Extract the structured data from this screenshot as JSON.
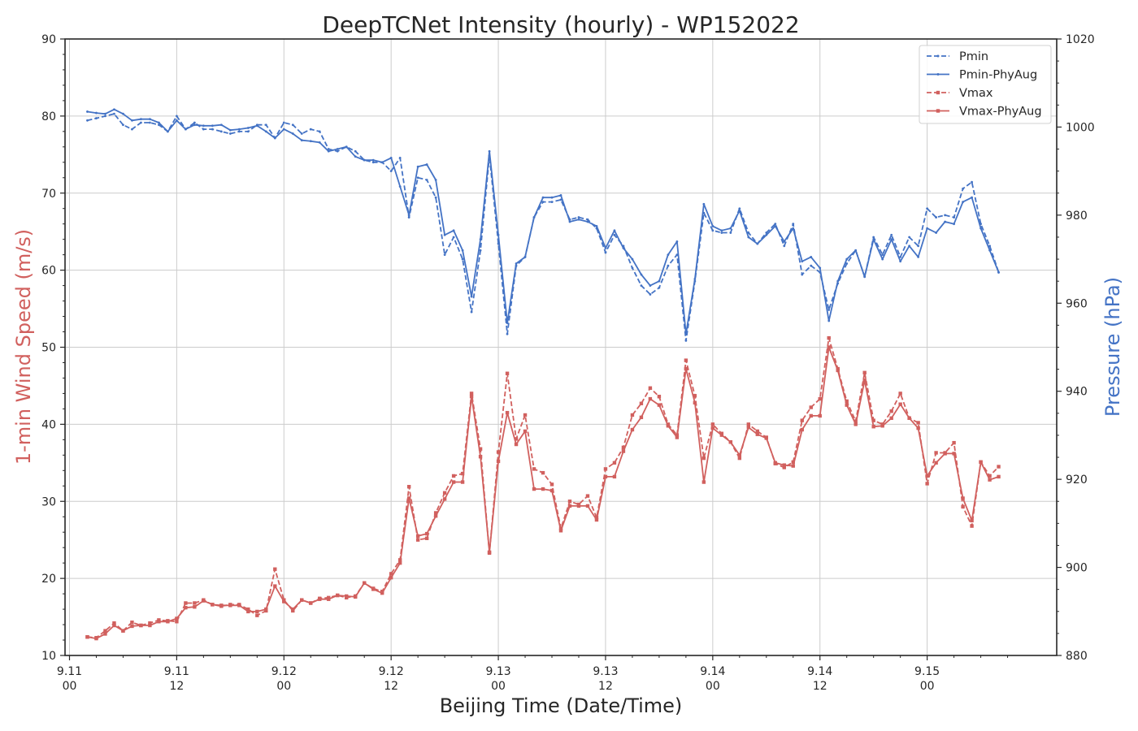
{
  "chart_data": {
    "type": "line",
    "title": "DeepTCNet Intensity (hourly) - WP152022",
    "xlabel": "Beijing Time (Date/Time)",
    "ylabel": "1-min Wind Speed (m/s)",
    "y2label": "Pressure (hPa)",
    "colors": {
      "wind": "#d1605e",
      "pressure": "#4473c5"
    },
    "grid": true,
    "legend_position": "top-right",
    "xlim": [
      -0.5,
      110.5
    ],
    "ylim": [
      10,
      90
    ],
    "y2lim": [
      880,
      1020
    ],
    "xticks": [
      {
        "x": 0,
        "date": "9.11",
        "hour": "00"
      },
      {
        "x": 12,
        "date": "9.11",
        "hour": "12"
      },
      {
        "x": 24,
        "date": "9.12",
        "hour": "00"
      },
      {
        "x": 36,
        "date": "9.12",
        "hour": "12"
      },
      {
        "x": 48,
        "date": "9.13",
        "hour": "00"
      },
      {
        "x": 60,
        "date": "9.13",
        "hour": "12"
      },
      {
        "x": 72,
        "date": "9.14",
        "hour": "00"
      },
      {
        "x": 84,
        "date": "9.14",
        "hour": "12"
      },
      {
        "x": 96,
        "date": "9.15",
        "hour": "00"
      }
    ],
    "yticks": [
      10,
      20,
      30,
      40,
      50,
      60,
      70,
      80,
      90
    ],
    "y2ticks": [
      880,
      900,
      920,
      940,
      960,
      980,
      1000,
      1020
    ],
    "x": [
      2,
      3,
      4,
      5,
      6,
      7,
      8,
      9,
      10,
      11,
      12,
      13,
      14,
      15,
      16,
      17,
      18,
      19,
      20,
      21,
      22,
      23,
      24,
      25,
      26,
      27,
      28,
      29,
      30,
      31,
      32,
      33,
      34,
      35,
      36,
      37,
      38,
      39,
      40,
      41,
      42,
      43,
      44,
      45,
      46,
      47,
      48,
      49,
      50,
      51,
      52,
      53,
      54,
      55,
      56,
      57,
      58,
      59,
      60,
      61,
      62,
      63,
      64,
      65,
      66,
      67,
      68,
      69,
      70,
      71,
      72,
      73,
      74,
      75,
      76,
      77,
      78,
      79,
      80,
      81,
      82,
      83,
      84,
      85,
      86,
      87,
      88,
      89,
      90,
      91,
      92,
      93,
      94,
      95,
      96,
      97,
      98,
      99,
      100,
      101,
      102,
      103,
      104
    ],
    "series": [
      {
        "name": "Pmin",
        "axis": "right",
        "style": "dashed",
        "values": [
          1001.5,
          1002,
          1002.5,
          1003,
          1000.5,
          999.5,
          1001,
          1001,
          1000.5,
          999,
          1002.5,
          999.5,
          1001,
          999.5,
          999.5,
          999,
          998.5,
          999,
          999,
          1000.5,
          1000.5,
          997.5,
          1001,
          1000.5,
          998.5,
          999.5,
          999,
          995,
          994.5,
          995.5,
          994.5,
          992.5,
          992,
          992,
          990,
          993,
          979.5,
          988.5,
          988,
          984,
          971,
          975,
          970,
          958,
          972,
          993.5,
          973.5,
          953,
          968.5,
          970.5,
          979.5,
          983,
          983,
          983.5,
          979,
          979.5,
          979,
          977,
          971.5,
          975.5,
          973,
          968,
          964,
          962,
          963.5,
          968.5,
          971,
          951.5,
          965,
          980.5,
          976.5,
          976,
          976,
          981.5,
          976,
          973.5,
          976,
          978,
          973,
          978,
          966.5,
          968.5,
          967,
          958.5,
          964.5,
          969,
          972,
          966,
          975,
          971,
          975.5,
          970.5,
          975,
          973,
          981.5,
          979.5,
          980,
          979.5,
          986,
          987.5,
          978,
          973,
          967
        ]
      },
      {
        "name": "Pmin-PhyAug",
        "axis": "right",
        "style": "solid",
        "values": [
          1003.5,
          1003.2,
          1003,
          1004,
          1003,
          1001.5,
          1001.8,
          1001.8,
          1001,
          999,
          1001.5,
          999.5,
          1000.5,
          1000.3,
          1000.3,
          1000.5,
          999.3,
          999.5,
          999.8,
          1000.3,
          999,
          997.5,
          999.5,
          998.5,
          997,
          996.8,
          996.5,
          994.5,
          995,
          995.5,
          993.3,
          992.5,
          992.5,
          992,
          993,
          986.5,
          980,
          991,
          991.5,
          988,
          975.5,
          976.5,
          972,
          961.5,
          974.5,
          994.5,
          975.5,
          955.5,
          969,
          970.5,
          979.5,
          984,
          984,
          984.5,
          978.5,
          979,
          978.5,
          977.5,
          972.5,
          976.5,
          972.5,
          970,
          966.5,
          964,
          965,
          971,
          974,
          953,
          965.5,
          982.5,
          977.5,
          976.5,
          977,
          981,
          975,
          973.5,
          975.5,
          977.5,
          974,
          977,
          969.5,
          970.5,
          968,
          956,
          965,
          970,
          972,
          966,
          974.5,
          970,
          974.5,
          969.5,
          973,
          970.5,
          977,
          976,
          978.5,
          978,
          983,
          984,
          977,
          972,
          967
        ]
      },
      {
        "name": "Vmax",
        "axis": "left",
        "style": "dashed",
        "values": [
          12.4,
          12.3,
          13.2,
          14.2,
          13.2,
          14.3,
          13.9,
          14.2,
          14.6,
          14.5,
          14.4,
          16.8,
          16.8,
          17.2,
          16.6,
          16.4,
          16.6,
          16.6,
          16,
          15.2,
          15.8,
          21.2,
          17.2,
          15.8,
          17.2,
          16.8,
          17.4,
          17.5,
          17.8,
          17.5,
          17.7,
          19.4,
          18.7,
          18.3,
          20.6,
          22.4,
          31.9,
          25,
          25.2,
          28.5,
          31.1,
          33.3,
          33.6,
          44,
          36.8,
          23.3,
          36.4,
          46.6,
          38.1,
          41.2,
          34.2,
          33.7,
          32.2,
          26.5,
          30,
          29.6,
          30.7,
          27.9,
          34.2,
          35,
          37,
          41.2,
          42.7,
          44.7,
          43.6,
          40,
          38.6,
          48.3,
          43.7,
          35.6,
          40,
          38.8,
          37.7,
          35.6,
          40,
          39.1,
          38.3,
          34.9,
          34.4,
          35.1,
          40.5,
          42.2,
          43.3,
          51.2,
          47.2,
          43,
          40.4,
          46.7,
          40.5,
          40,
          41.7,
          44,
          40.8,
          40.2,
          32.3,
          36.3,
          36.3,
          37.6,
          29.3,
          26.8,
          35.1,
          33.3,
          34.5
        ]
      },
      {
        "name": "Vmax-PhyAug",
        "axis": "left",
        "style": "solid",
        "values": [
          12.4,
          12.2,
          12.8,
          13.9,
          13.2,
          13.8,
          13.9,
          13.9,
          14.4,
          14.4,
          14.8,
          16.2,
          16.3,
          17.1,
          16.6,
          16.5,
          16.5,
          16.5,
          15.7,
          15.7,
          16,
          19,
          17,
          16,
          17.2,
          16.8,
          17.3,
          17.3,
          17.8,
          17.7,
          17.6,
          19.4,
          18.6,
          18.1,
          20.1,
          22,
          30.4,
          25.5,
          25.8,
          28.1,
          30.3,
          32.5,
          32.5,
          43.6,
          35.8,
          23.4,
          35.2,
          41.5,
          37.4,
          39.1,
          31.6,
          31.6,
          31.4,
          26.2,
          29.4,
          29.4,
          29.4,
          27.6,
          33.2,
          33.2,
          36.5,
          39.3,
          40.9,
          43.3,
          42.5,
          39.8,
          38.3,
          47.2,
          42.8,
          32.5,
          39.5,
          38.6,
          37.7,
          36,
          39.6,
          38.7,
          38.2,
          35,
          34.7,
          34.6,
          39.3,
          41.1,
          41.1,
          50,
          47,
          42.5,
          40,
          45.7,
          39.7,
          39.8,
          40.8,
          42.6,
          40.8,
          39.5,
          33.3,
          35,
          36.2,
          36.2,
          30.4,
          27.5,
          35.1,
          32.8,
          33.2
        ]
      }
    ]
  }
}
